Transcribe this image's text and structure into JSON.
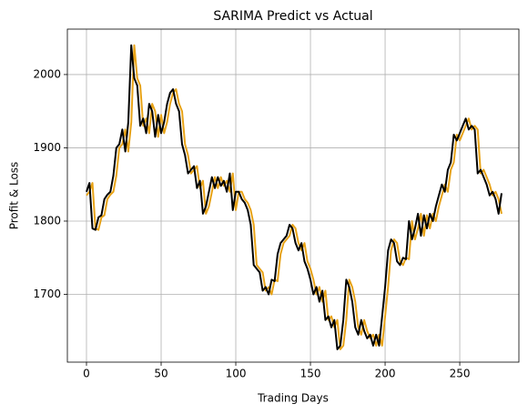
{
  "chart_data": {
    "type": "line",
    "title": "SARIMA Predict vs Actual",
    "x_label": "Trading Days",
    "y_label": "Profit & Loss",
    "x": [
      0,
      2,
      4,
      6,
      8,
      10,
      12,
      14,
      16,
      18,
      20,
      22,
      24,
      26,
      28,
      30,
      32,
      34,
      36,
      38,
      40,
      42,
      44,
      46,
      48,
      50,
      52,
      54,
      56,
      58,
      60,
      62,
      64,
      66,
      68,
      70,
      72,
      74,
      76,
      78,
      80,
      82,
      84,
      86,
      88,
      90,
      92,
      94,
      96,
      98,
      100,
      102,
      104,
      106,
      108,
      110,
      112,
      114,
      116,
      118,
      120,
      122,
      124,
      126,
      128,
      130,
      132,
      134,
      136,
      138,
      140,
      142,
      144,
      146,
      148,
      150,
      152,
      154,
      156,
      158,
      160,
      162,
      164,
      166,
      168,
      170,
      172,
      174,
      176,
      178,
      180,
      182,
      184,
      186,
      188,
      190,
      192,
      194,
      196,
      198,
      200,
      202,
      204,
      206,
      208,
      210,
      212,
      214,
      216,
      218,
      220,
      222,
      224,
      226,
      228,
      230,
      232,
      234,
      236,
      238,
      240,
      242,
      244,
      246,
      248,
      250,
      252,
      254,
      256,
      258,
      260,
      262,
      264,
      266,
      268,
      270,
      272,
      274,
      276,
      278
    ],
    "series": [
      {
        "color": "#e8a317",
        "values": [
          1835,
          1840,
          1852,
          1790,
          1788,
          1805,
          1808,
          1830,
          1836,
          1840,
          1862,
          1900,
          1905,
          1925,
          1895,
          1935,
          2040,
          1995,
          1985,
          1930,
          1940,
          1920,
          1960,
          1950,
          1915,
          1945,
          1920,
          1935,
          1960,
          1975,
          1980,
          1960,
          1950,
          1905,
          1890,
          1865,
          1870,
          1875,
          1845,
          1855,
          1810,
          1820,
          1840,
          1860,
          1845,
          1860,
          1848,
          1855,
          1840,
          1865,
          1815,
          1840,
          1840,
          1830,
          1825,
          1815,
          1795,
          1740,
          1735,
          1730,
          1705,
          1710,
          1700,
          1720,
          1718,
          1755,
          1770,
          1775,
          1780,
          1795,
          1790,
          1770,
          1760,
          1770,
          1745,
          1735,
          1720,
          1700,
          1710,
          1690,
          1705,
          1665,
          1670,
          1655,
          1665,
          1625,
          1630,
          1665,
          1720,
          1710,
          1690,
          1655,
          1645,
          1665,
          1650,
          1640,
          1645,
          1630,
          1645,
          1630,
          1670,
          1710,
          1760,
          1775,
          1770,
          1745,
          1740,
          1750,
          1748,
          1800,
          1775,
          1790,
          1810,
          1780,
          1808,
          1790,
          1810,
          1800,
          1820,
          1835,
          1850,
          1840,
          1870,
          1880,
          1918,
          1910,
          1920,
          1930,
          1940,
          1925,
          1930,
          1925,
          1865,
          1870,
          1860,
          1850,
          1835,
          1840,
          1830,
          1810
        ]
      },
      {
        "color": "#000000",
        "values": [
          1840,
          1852,
          1790,
          1788,
          1805,
          1808,
          1830,
          1836,
          1840,
          1862,
          1900,
          1905,
          1925,
          1895,
          1935,
          2040,
          1995,
          1985,
          1930,
          1940,
          1920,
          1960,
          1950,
          1915,
          1945,
          1920,
          1935,
          1960,
          1975,
          1980,
          1960,
          1950,
          1905,
          1890,
          1865,
          1870,
          1875,
          1845,
          1855,
          1810,
          1820,
          1840,
          1860,
          1845,
          1860,
          1848,
          1855,
          1840,
          1865,
          1815,
          1840,
          1840,
          1830,
          1825,
          1815,
          1795,
          1740,
          1735,
          1730,
          1705,
          1710,
          1700,
          1720,
          1718,
          1755,
          1770,
          1775,
          1780,
          1795,
          1790,
          1770,
          1760,
          1770,
          1745,
          1735,
          1720,
          1700,
          1710,
          1690,
          1705,
          1665,
          1670,
          1655,
          1665,
          1625,
          1630,
          1665,
          1720,
          1710,
          1690,
          1655,
          1645,
          1665,
          1650,
          1640,
          1645,
          1630,
          1645,
          1630,
          1670,
          1710,
          1760,
          1775,
          1770,
          1745,
          1740,
          1750,
          1748,
          1800,
          1775,
          1790,
          1810,
          1780,
          1808,
          1790,
          1810,
          1800,
          1820,
          1835,
          1850,
          1840,
          1870,
          1880,
          1918,
          1910,
          1920,
          1930,
          1940,
          1925,
          1930,
          1925,
          1865,
          1870,
          1860,
          1850,
          1835,
          1840,
          1830,
          1810,
          1838
        ]
      }
    ],
    "xlim": [
      -12.8,
      289.6
    ],
    "ylim": [
      1607.5,
      2062
    ],
    "xticks": [
      0,
      50,
      100,
      150,
      200,
      250
    ],
    "yticks": [
      1700,
      1800,
      1900,
      2000
    ],
    "grid": true
  }
}
